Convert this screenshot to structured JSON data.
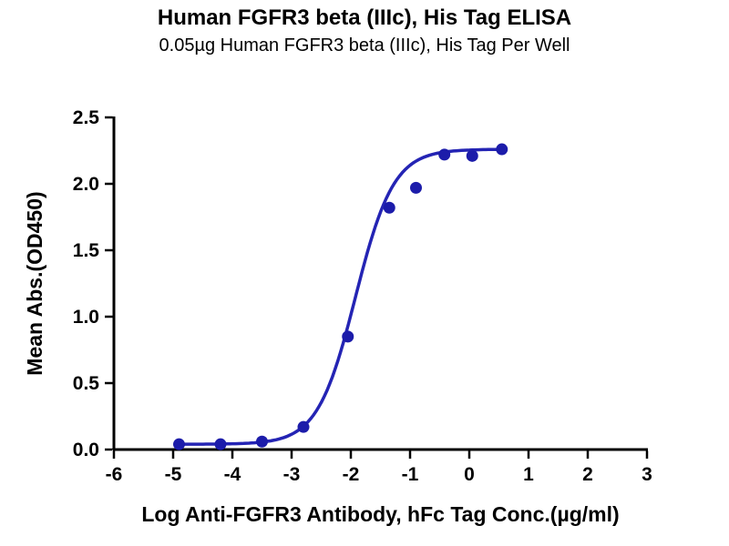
{
  "chart_data": {
    "type": "scatter",
    "title": "Human FGFR3 beta (IIIc), His Tag ELISA",
    "subtitle": "0.05µg Human FGFR3 beta (IIIc), His Tag Per Well",
    "xlabel": "Log Anti-FGFR3 Antibody, hFc Tag Conc.(µg/ml)",
    "ylabel": "Mean Abs.(OD450)",
    "xlim": [
      -6,
      3
    ],
    "ylim": [
      0,
      2.5
    ],
    "x_ticks": [
      "-6",
      "-5",
      "-4",
      "-3",
      "-2",
      "-1",
      "0",
      "1",
      "2",
      "3"
    ],
    "y_ticks": [
      "0.0",
      "0.5",
      "1.0",
      "1.5",
      "2.0",
      "2.5"
    ],
    "grid": false,
    "legend": "none",
    "series": [
      {
        "name": "Anti-FGFR3 Antibody, hFc Tag",
        "x": [
          -4.9,
          -4.2,
          -3.5,
          -2.8,
          -2.05,
          -1.35,
          -0.9,
          -0.42,
          0.05,
          0.55
        ],
        "y": [
          0.04,
          0.04,
          0.06,
          0.17,
          0.85,
          1.82,
          1.97,
          2.22,
          2.21,
          2.26
        ]
      }
    ],
    "fit_curve": {
      "model": "4PL",
      "bottom": 0.04,
      "top": 2.26,
      "logEC50": -1.92,
      "hill": 1.35,
      "x_start": -4.9,
      "x_end": 0.55
    },
    "colors": {
      "marker": "#1c1caa",
      "line": "#2424b4",
      "axis": "#000000",
      "background": "#ffffff"
    }
  }
}
